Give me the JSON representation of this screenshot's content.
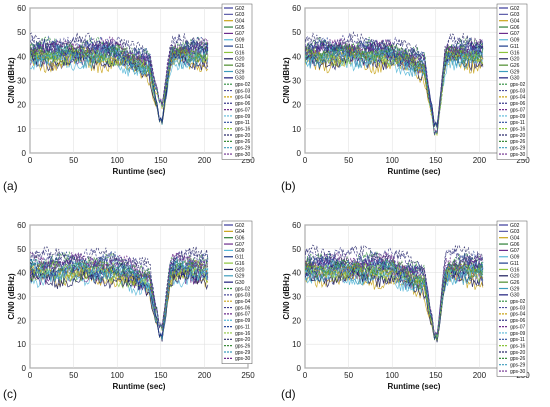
{
  "figure": {
    "panel_labels": [
      "(a)",
      "(b)",
      "(c)",
      "(d)"
    ]
  },
  "chart_data": [
    {
      "type": "line",
      "panel_label": "(a)",
      "xlabel": "Runtime (sec)",
      "ylabel": "C/N0 (dBHz)",
      "xlim": [
        0,
        250
      ],
      "ylim": [
        0,
        60
      ],
      "xticks": [
        0,
        50,
        100,
        150,
        200,
        250
      ],
      "yticks": [
        0,
        10,
        20,
        30,
        40,
        50,
        60
      ],
      "grid": true,
      "legend_position": "right-inside",
      "series": [
        {
          "name": "G02",
          "color": "#3a3a9a",
          "style": "solid",
          "base": 41,
          "dip": 12
        },
        {
          "name": "G03",
          "color": "#5a5aa8",
          "style": "solid",
          "base": 39,
          "dip": 12
        },
        {
          "name": "G04",
          "color": "#c9a418",
          "style": "solid",
          "base": 37,
          "dip": 12
        },
        {
          "name": "G05",
          "color": "#2c7f35",
          "style": "solid",
          "base": 42,
          "dip": 12
        },
        {
          "name": "G07",
          "color": "#6c2c8c",
          "style": "solid",
          "base": 40,
          "dip": 12
        },
        {
          "name": "G09",
          "color": "#58b8d8",
          "style": "solid",
          "base": 38,
          "dip": 12
        },
        {
          "name": "G11",
          "color": "#1c3c8c",
          "style": "solid",
          "base": 43,
          "dip": 12
        },
        {
          "name": "G16",
          "color": "#8cc43c",
          "style": "solid",
          "base": 40,
          "dip": 12
        },
        {
          "name": "G20",
          "color": "#1c1c5c",
          "style": "solid",
          "base": 38,
          "dip": 12
        },
        {
          "name": "G26",
          "color": "#4c8c2c",
          "style": "solid",
          "base": 41,
          "dip": 12
        },
        {
          "name": "G29",
          "color": "#3c9cbc",
          "style": "solid",
          "base": 39,
          "dip": 12
        },
        {
          "name": "G30",
          "color": "#1c1c7c",
          "style": "solid",
          "base": 42,
          "dip": 12
        },
        {
          "name": "gps-02",
          "color": "#2c8c3c",
          "style": "dashed",
          "base": 44,
          "dip": 20
        },
        {
          "name": "gps-03",
          "color": "#4c4c9c",
          "style": "dashed",
          "base": 42,
          "dip": 20
        },
        {
          "name": "gps-04",
          "color": "#c9a418",
          "style": "dashed",
          "base": 40,
          "dip": 20
        },
        {
          "name": "gps-06",
          "color": "#3c3c8c",
          "style": "dashed",
          "base": 45,
          "dip": 20
        },
        {
          "name": "gps-07",
          "color": "#6c2c8c",
          "style": "dashed",
          "base": 43,
          "dip": 20
        },
        {
          "name": "gps-09",
          "color": "#58b8d8",
          "style": "dashed",
          "base": 41,
          "dip": 20
        },
        {
          "name": "gps-11",
          "color": "#2c4c9c",
          "style": "dashed",
          "base": 44,
          "dip": 20
        },
        {
          "name": "gps-16",
          "color": "#8cc43c",
          "style": "dashed",
          "base": 40,
          "dip": 20
        },
        {
          "name": "gps-20",
          "color": "#2c2c6c",
          "style": "dashed",
          "base": 46,
          "dip": 20
        },
        {
          "name": "gps-26",
          "color": "#3c8c3c",
          "style": "dashed",
          "base": 42,
          "dip": 20
        },
        {
          "name": "gps-29",
          "color": "#3c9cbc",
          "style": "dashed",
          "base": 41,
          "dip": 20
        },
        {
          "name": "gps-30",
          "color": "#6c2c8c",
          "style": "dashed",
          "base": 44,
          "dip": 20
        }
      ]
    },
    {
      "type": "line",
      "panel_label": "(b)",
      "xlabel": "Runtime (sec)",
      "ylabel": "C/N0 (dBHz)",
      "xlim": [
        0,
        250
      ],
      "ylim": [
        0,
        60
      ],
      "xticks": [
        0,
        50,
        100,
        150,
        200,
        250
      ],
      "yticks": [
        0,
        10,
        20,
        30,
        40,
        50,
        60
      ],
      "grid": true,
      "legend_position": "right-inside",
      "series": [
        {
          "name": "G02",
          "color": "#3a3a9a",
          "style": "solid",
          "base": 41,
          "dip": 10
        },
        {
          "name": "G03",
          "color": "#5a5aa8",
          "style": "solid",
          "base": 39,
          "dip": 10
        },
        {
          "name": "G04",
          "color": "#c9a418",
          "style": "solid",
          "base": 37,
          "dip": 10
        },
        {
          "name": "G06",
          "color": "#2c7f35",
          "style": "solid",
          "base": 42,
          "dip": 10
        },
        {
          "name": "G07",
          "color": "#6c2c8c",
          "style": "solid",
          "base": 40,
          "dip": 10
        },
        {
          "name": "G09",
          "color": "#58b8d8",
          "style": "solid",
          "base": 38,
          "dip": 10
        },
        {
          "name": "G11",
          "color": "#1c3c8c",
          "style": "solid",
          "base": 43,
          "dip": 10
        },
        {
          "name": "G16",
          "color": "#8cc43c",
          "style": "solid",
          "base": 40,
          "dip": 10
        },
        {
          "name": "G20",
          "color": "#1c1c5c",
          "style": "solid",
          "base": 38,
          "dip": 10
        },
        {
          "name": "G26",
          "color": "#4c8c2c",
          "style": "solid",
          "base": 41,
          "dip": 10
        },
        {
          "name": "G29",
          "color": "#3c9cbc",
          "style": "solid",
          "base": 39,
          "dip": 10
        },
        {
          "name": "G30",
          "color": "#1c1c7c",
          "style": "solid",
          "base": 42,
          "dip": 10
        },
        {
          "name": "gps-02",
          "color": "#2c8c3c",
          "style": "dashed",
          "base": 44,
          "dip": 6
        },
        {
          "name": "gps-03",
          "color": "#4c4c9c",
          "style": "dashed",
          "base": 42,
          "dip": 6
        },
        {
          "name": "gps-04",
          "color": "#c9a418",
          "style": "dashed",
          "base": 40,
          "dip": 6
        },
        {
          "name": "gps-06",
          "color": "#3c3c8c",
          "style": "dashed",
          "base": 45,
          "dip": 6
        },
        {
          "name": "gps-07",
          "color": "#6c2c8c",
          "style": "dashed",
          "base": 43,
          "dip": 6
        },
        {
          "name": "gps-09",
          "color": "#58b8d8",
          "style": "dashed",
          "base": 41,
          "dip": 6
        },
        {
          "name": "gps-11",
          "color": "#2c4c9c",
          "style": "dashed",
          "base": 44,
          "dip": 6
        },
        {
          "name": "gps-16",
          "color": "#8cc43c",
          "style": "dashed",
          "base": 40,
          "dip": 6
        },
        {
          "name": "gps-20",
          "color": "#2c2c6c",
          "style": "dashed",
          "base": 46,
          "dip": 6
        },
        {
          "name": "gps-26",
          "color": "#3c8c3c",
          "style": "dashed",
          "base": 42,
          "dip": 6
        },
        {
          "name": "gps-29",
          "color": "#3c9cbc",
          "style": "dashed",
          "base": 41,
          "dip": 6
        },
        {
          "name": "gps-30",
          "color": "#6c2c8c",
          "style": "dashed",
          "base": 44,
          "dip": 6
        }
      ]
    },
    {
      "type": "line",
      "panel_label": "(c)",
      "xlabel": "Runtime (sec)",
      "ylabel": "C/N0 (dBHz)",
      "xlim": [
        0,
        250
      ],
      "ylim": [
        0,
        60
      ],
      "xticks": [
        0,
        50,
        100,
        150,
        200,
        250
      ],
      "yticks": [
        0,
        10,
        20,
        30,
        40,
        50,
        60
      ],
      "grid": true,
      "legend_position": "right-inside",
      "series": [
        {
          "name": "G02",
          "color": "#3a3a9a",
          "style": "solid",
          "base": 40,
          "dip": 12
        },
        {
          "name": "G04",
          "color": "#c9a418",
          "style": "solid",
          "base": 38,
          "dip": 12
        },
        {
          "name": "G06",
          "color": "#2c7f35",
          "style": "solid",
          "base": 41,
          "dip": 12
        },
        {
          "name": "G07",
          "color": "#6c2c8c",
          "style": "solid",
          "base": 39,
          "dip": 12
        },
        {
          "name": "G09",
          "color": "#58b8d8",
          "style": "solid",
          "base": 38,
          "dip": 12
        },
        {
          "name": "G11",
          "color": "#1c3c8c",
          "style": "solid",
          "base": 42,
          "dip": 12
        },
        {
          "name": "G16",
          "color": "#8cc43c",
          "style": "solid",
          "base": 39,
          "dip": 12
        },
        {
          "name": "G20",
          "color": "#1c1c5c",
          "style": "solid",
          "base": 37,
          "dip": 12
        },
        {
          "name": "G29",
          "color": "#3c9cbc",
          "style": "solid",
          "base": 40,
          "dip": 12
        },
        {
          "name": "G30",
          "color": "#1c1c7c",
          "style": "solid",
          "base": 41,
          "dip": 12
        },
        {
          "name": "gps-02",
          "color": "#2c8c3c",
          "style": "dashed",
          "base": 45,
          "dip": 16
        },
        {
          "name": "gps-03",
          "color": "#4c4c9c",
          "style": "dashed",
          "base": 43,
          "dip": 16
        },
        {
          "name": "gps-04",
          "color": "#c9a418",
          "style": "dashed",
          "base": 41,
          "dip": 16
        },
        {
          "name": "gps-06",
          "color": "#3c3c8c",
          "style": "dashed",
          "base": 46,
          "dip": 16
        },
        {
          "name": "gps-07",
          "color": "#6c2c8c",
          "style": "dashed",
          "base": 44,
          "dip": 16
        },
        {
          "name": "gps-09",
          "color": "#58b8d8",
          "style": "dashed",
          "base": 42,
          "dip": 16
        },
        {
          "name": "gps-11",
          "color": "#2c4c9c",
          "style": "dashed",
          "base": 45,
          "dip": 16
        },
        {
          "name": "gps-16",
          "color": "#8cc43c",
          "style": "dashed",
          "base": 41,
          "dip": 16
        },
        {
          "name": "gps-20",
          "color": "#2c2c6c",
          "style": "dashed",
          "base": 47,
          "dip": 16
        },
        {
          "name": "gps-26",
          "color": "#3c8c3c",
          "style": "dashed",
          "base": 43,
          "dip": 16
        },
        {
          "name": "gps-29",
          "color": "#3c9cbc",
          "style": "dashed",
          "base": 42,
          "dip": 16
        },
        {
          "name": "gps-30",
          "color": "#6c2c8c",
          "style": "dashed",
          "base": 45,
          "dip": 16
        }
      ]
    },
    {
      "type": "line",
      "panel_label": "(d)",
      "xlabel": "Runtime (sec)",
      "ylabel": "C/N0 (dBHz)",
      "xlim": [
        0,
        250
      ],
      "ylim": [
        0,
        60
      ],
      "xticks": [
        0,
        50,
        100,
        150,
        200,
        250
      ],
      "yticks": [
        0,
        10,
        20,
        30,
        40,
        50,
        60
      ],
      "grid": true,
      "legend_position": "right-inside",
      "series": [
        {
          "name": "G02",
          "color": "#3a3a9a",
          "style": "solid",
          "base": 41,
          "dip": 11
        },
        {
          "name": "G03",
          "color": "#5a5aa8",
          "style": "solid",
          "base": 39,
          "dip": 11
        },
        {
          "name": "G04",
          "color": "#c9a418",
          "style": "solid",
          "base": 37,
          "dip": 11
        },
        {
          "name": "G06",
          "color": "#2c7f35",
          "style": "solid",
          "base": 42,
          "dip": 11
        },
        {
          "name": "G07",
          "color": "#6c2c8c",
          "style": "solid",
          "base": 40,
          "dip": 11
        },
        {
          "name": "G09",
          "color": "#58b8d8",
          "style": "solid",
          "base": 38,
          "dip": 11
        },
        {
          "name": "G11",
          "color": "#1c3c8c",
          "style": "solid",
          "base": 43,
          "dip": 11
        },
        {
          "name": "G16",
          "color": "#8cc43c",
          "style": "solid",
          "base": 40,
          "dip": 11
        },
        {
          "name": "G20",
          "color": "#1c1c5c",
          "style": "solid",
          "base": 38,
          "dip": 11
        },
        {
          "name": "G26",
          "color": "#4c8c2c",
          "style": "solid",
          "base": 41,
          "dip": 11
        },
        {
          "name": "G29",
          "color": "#3c9cbc",
          "style": "solid",
          "base": 39,
          "dip": 11
        },
        {
          "name": "G30",
          "color": "#1c1c7c",
          "style": "solid",
          "base": 42,
          "dip": 11
        },
        {
          "name": "gps-02",
          "color": "#2c8c3c",
          "style": "dashed",
          "base": 45,
          "dip": 12
        },
        {
          "name": "gps-03",
          "color": "#4c4c9c",
          "style": "dashed",
          "base": 43,
          "dip": 12
        },
        {
          "name": "gps-04",
          "color": "#c9a418",
          "style": "dashed",
          "base": 41,
          "dip": 12
        },
        {
          "name": "gps-06",
          "color": "#3c3c8c",
          "style": "dashed",
          "base": 47,
          "dip": 12
        },
        {
          "name": "gps-07",
          "color": "#6c2c8c",
          "style": "dashed",
          "base": 44,
          "dip": 12
        },
        {
          "name": "gps-09",
          "color": "#58b8d8",
          "style": "dashed",
          "base": 42,
          "dip": 12
        },
        {
          "name": "gps-11",
          "color": "#2c4c9c",
          "style": "dashed",
          "base": 45,
          "dip": 12
        },
        {
          "name": "gps-16",
          "color": "#8cc43c",
          "style": "dashed",
          "base": 41,
          "dip": 12
        },
        {
          "name": "gps-20",
          "color": "#2c2c6c",
          "style": "dashed",
          "base": 48,
          "dip": 12
        },
        {
          "name": "gps-26",
          "color": "#3c8c3c",
          "style": "dashed",
          "base": 43,
          "dip": 12
        },
        {
          "name": "gps-29",
          "color": "#3c9cbc",
          "style": "dashed",
          "base": 42,
          "dip": 12
        },
        {
          "name": "gps-30",
          "color": "#6c2c8c",
          "style": "dashed",
          "base": 45,
          "dip": 12
        }
      ]
    }
  ]
}
